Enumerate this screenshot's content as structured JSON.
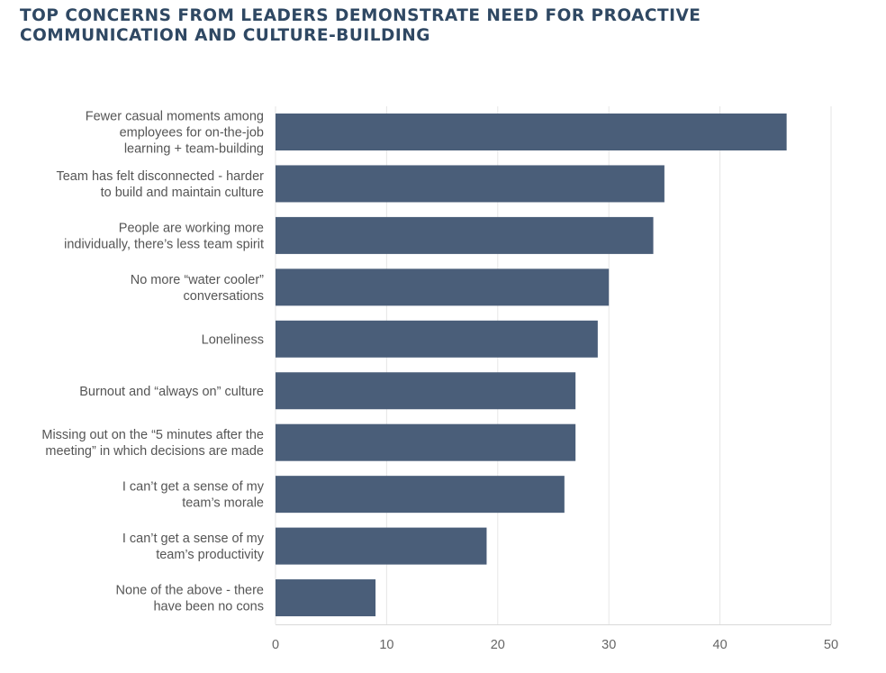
{
  "chart_data": {
    "type": "bar",
    "orientation": "horizontal",
    "title": "TOP CONCERNS FROM LEADERS DEMONSTRATE NEED FOR PROACTIVE\nCOMMUNICATION AND CULTURE-BUILDING",
    "categories": [
      "Fewer casual moments among\nemployees for on-the-job\nlearning + team-building",
      "Team has felt disconnected - harder\nto build and maintain culture",
      "People are working more\nindividually, there’s less team spirit",
      "No more “water cooler”\nconversations",
      "Loneliness",
      "Burnout and “always on” culture",
      "Missing out on the “5 minutes after the\nmeeting” in which decisions are made",
      "I can’t get a sense of my\nteam’s morale",
      "I can’t get a sense of my\nteam’s productivity",
      "None of the above - there\nhave been no cons"
    ],
    "values": [
      46,
      35,
      34,
      30,
      29,
      27,
      27,
      26,
      19,
      9
    ],
    "xlim": [
      0,
      50
    ],
    "xticks": [
      "0",
      "10",
      "20",
      "30",
      "40",
      "50"
    ],
    "xlabel": "",
    "ylabel": "",
    "grid": true,
    "legend": "none",
    "colors": {
      "bar": "#4a5e79",
      "grid": "#e6e6e6",
      "title": "#2f4863"
    }
  }
}
